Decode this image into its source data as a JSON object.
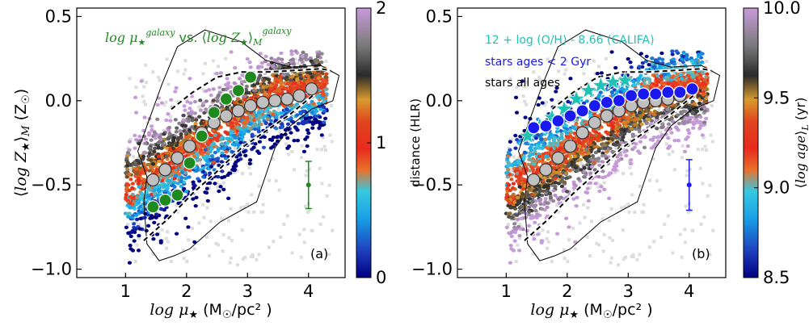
{
  "figure": {
    "panels": [
      "(a)",
      "(b)"
    ]
  },
  "colors": {
    "green": "#1e8a1e",
    "teal": "#1fc2b4",
    "blue": "#1a1af0",
    "gray_marker": "#c0c0c0",
    "contour": "#000000"
  },
  "chart_data": [
    {
      "type": "scatter",
      "panel_label": "(a)",
      "xlabel": "log μ★ (M☉/pc²)",
      "ylabel": "⟨log Z★⟩M (Z☉)",
      "xlim": [
        0.2,
        4.6
      ],
      "ylim": [
        -1.05,
        0.55
      ],
      "xticks": [
        1,
        2,
        3,
        4
      ],
      "yticks": [
        0.5,
        0.0,
        -0.5,
        -1.0
      ],
      "xtick_labels": [
        "1",
        "2",
        "3",
        "4"
      ],
      "ytick_labels": [
        "0.5",
        "0.0",
        "−0.5",
        "−1.0"
      ],
      "legend": [
        {
          "text": "log μ★galaxy vs. ⟨log Z★⟩Mgalaxy",
          "color": "#1e8a1e"
        }
      ],
      "series": [
        {
          "name": "galaxy",
          "marker": "circle",
          "color": "#1e8a1e",
          "x": [
            1.45,
            1.65,
            1.85,
            2.05,
            2.25,
            2.45,
            2.65,
            2.85,
            3.05
          ],
          "y": [
            -0.63,
            -0.59,
            -0.56,
            -0.37,
            -0.21,
            -0.07,
            0.01,
            0.06,
            0.14
          ]
        },
        {
          "name": "binned",
          "marker": "circle",
          "color": "#c0c0c0",
          "x": [
            1.45,
            1.65,
            1.85,
            2.05,
            2.25,
            2.45,
            2.65,
            2.85,
            3.05,
            3.25,
            3.45,
            3.65,
            3.85,
            4.05
          ],
          "y": [
            -0.47,
            -0.41,
            -0.34,
            -0.27,
            -0.19,
            -0.13,
            -0.09,
            -0.06,
            -0.03,
            -0.01,
            0.0,
            0.01,
            0.03,
            0.07
          ]
        }
      ],
      "errorbar": {
        "x": 4.0,
        "y": -0.5,
        "yerr": 0.14,
        "color": "#1e8a1e"
      },
      "colorbar": {
        "label": "",
        "ticks": [
          0,
          1,
          2
        ],
        "tick_labels": [
          "0",
          "1",
          "2"
        ],
        "range": [
          0,
          2
        ]
      }
    },
    {
      "type": "scatter",
      "panel_label": "(b)",
      "xlabel": "log μ★ (M☉/pc²)",
      "ylabel": "distance (HLR)",
      "xlim": [
        0.2,
        4.6
      ],
      "ylim": [
        -1.05,
        0.55
      ],
      "xticks": [
        1,
        2,
        3,
        4
      ],
      "yticks": [
        0.5,
        0.0,
        -0.5,
        -1.0
      ],
      "xtick_labels": [
        "1",
        "2",
        "3",
        "4"
      ],
      "ytick_labels": [
        "0.5",
        "0.0",
        "−0.5",
        "−1.0"
      ],
      "legend": [
        {
          "text": "12 + log (O/H) - 8.66 (CALIFA)",
          "color": "#1fc2b4"
        },
        {
          "text": "stars ages < 2 Gyr",
          "color": "#1a1af0"
        },
        {
          "text": "stars all ages",
          "color": "#000000"
        }
      ],
      "series": [
        {
          "name": "12 + log (O/H) - 8.66 (CALIFA)",
          "marker": "star",
          "color": "#1fc2b4",
          "x": [
            1.35,
            1.55,
            1.75,
            1.95,
            2.15,
            2.35,
            2.55,
            2.75,
            2.95
          ],
          "y": [
            -0.21,
            -0.15,
            -0.1,
            -0.05,
            0.01,
            0.06,
            0.09,
            0.11,
            0.12
          ]
        },
        {
          "name": "stars ages < 2 Gyr",
          "marker": "circle",
          "color": "#1a1af0",
          "x": [
            1.45,
            1.65,
            1.85,
            2.05,
            2.25,
            2.45,
            2.65,
            2.85,
            3.05,
            3.25,
            3.45,
            3.65,
            3.85,
            4.05
          ],
          "y": [
            -0.16,
            -0.15,
            -0.12,
            -0.09,
            -0.06,
            -0.03,
            -0.01,
            0.0,
            0.03,
            0.04,
            0.04,
            0.05,
            0.05,
            0.07
          ]
        },
        {
          "name": "stars all ages",
          "marker": "circle",
          "color": "#c0c0c0",
          "x": [
            1.45,
            1.65,
            1.85,
            2.05,
            2.25,
            2.45,
            2.65,
            2.85,
            3.05,
            3.25,
            3.45,
            3.65,
            3.85,
            4.05
          ],
          "y": [
            -0.47,
            -0.41,
            -0.34,
            -0.27,
            -0.19,
            -0.13,
            -0.09,
            -0.06,
            -0.03,
            -0.01,
            0.0,
            0.01,
            0.03,
            0.07
          ]
        }
      ],
      "errorbar": {
        "x": 4.0,
        "y": -0.5,
        "yerr": 0.15,
        "color": "#1a1af0"
      },
      "colorbar": {
        "label": "⟨log age⟩L (yr)",
        "ticks": [
          8.5,
          9.0,
          9.5,
          10.0
        ],
        "tick_labels": [
          "8.5",
          "9.0",
          "9.5",
          "10.0"
        ],
        "range": [
          8.5,
          10.0
        ]
      }
    }
  ]
}
